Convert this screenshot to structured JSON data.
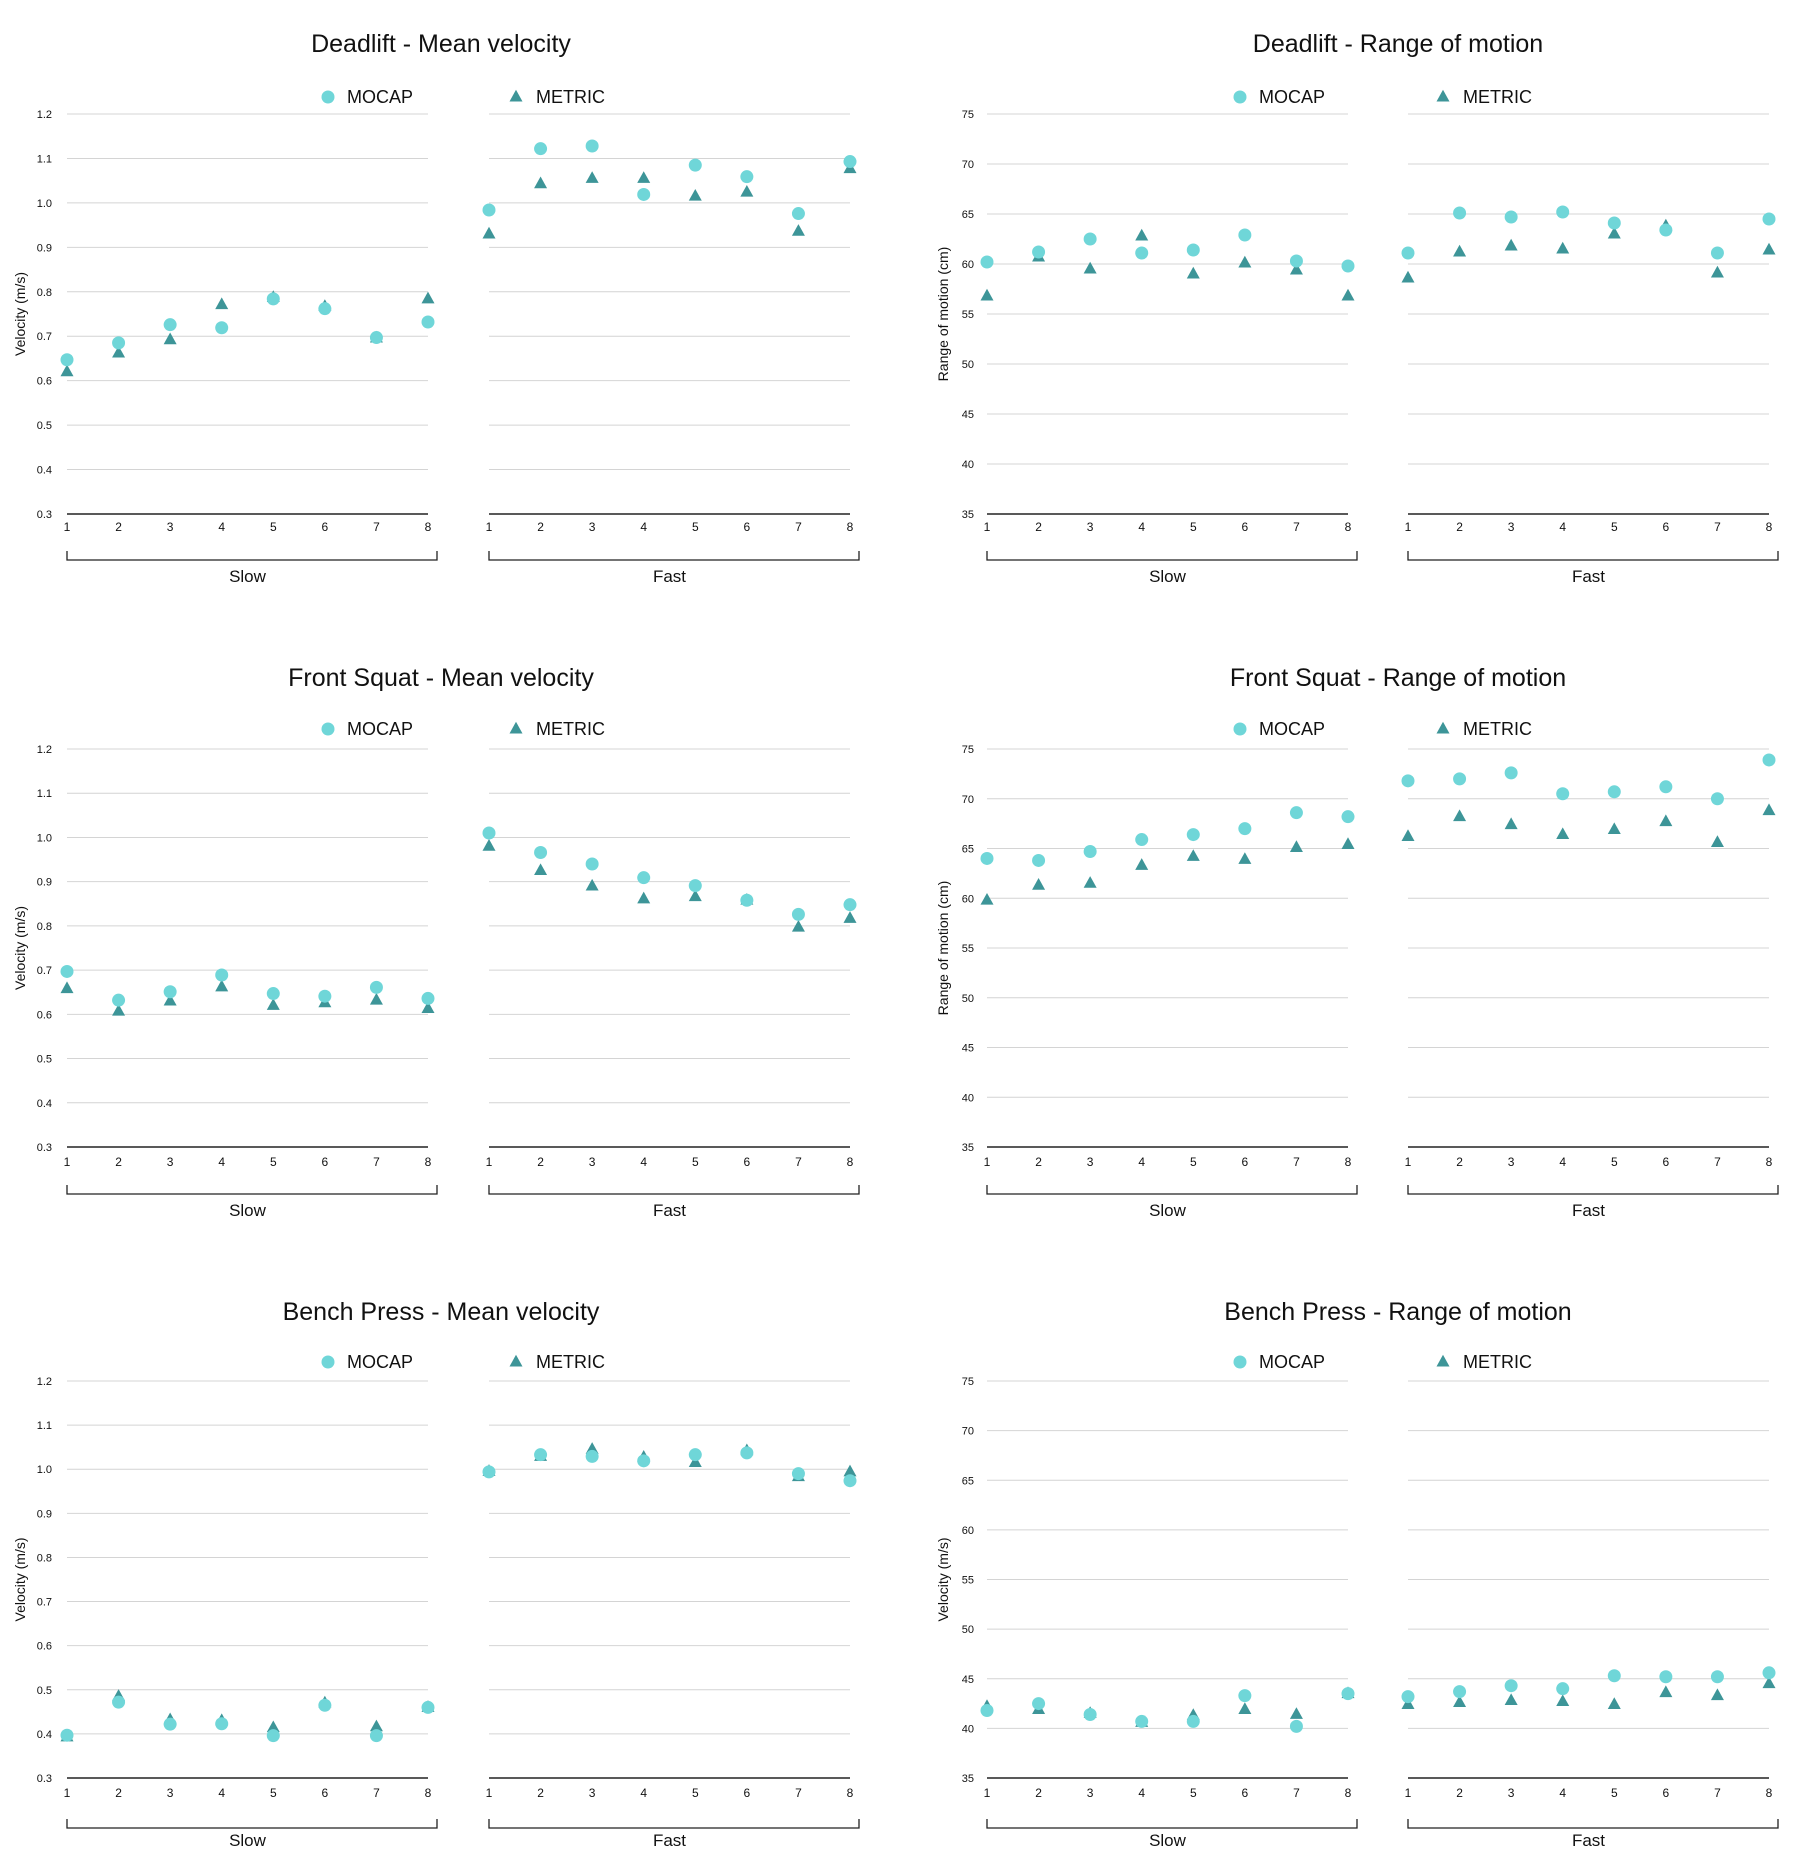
{
  "colors": {
    "mocap": "#6fd6d8",
    "metric": "#3d9598",
    "grid": "#d4d4d4",
    "axis": "#222222",
    "text": "#111111"
  },
  "legend": {
    "mocap": "MOCAP",
    "metric": "METRIC"
  },
  "chart_data": [
    {
      "type": "scatter",
      "title": "Deadlift - Mean velocity",
      "ylabel": "Velocity (m/s)",
      "ylim": [
        0.3,
        1.2
      ],
      "yticks": [
        "0.3",
        "0.4",
        "0.5",
        "0.6",
        "0.7",
        "0.8",
        "0.9",
        "1.0",
        "1.1",
        "1.2"
      ],
      "categories": [
        "1",
        "2",
        "3",
        "4",
        "5",
        "6",
        "7",
        "8"
      ],
      "groups": [
        {
          "name": "Slow",
          "series": [
            {
              "name": "MOCAP",
              "values": [
                0.647,
                0.685,
                0.726,
                0.719,
                0.784,
                0.762,
                0.697,
                0.732
              ]
            },
            {
              "name": "METRIC",
              "values": [
                0.62,
                0.662,
                0.692,
                0.771,
                0.787,
                0.767,
                0.696,
                0.784
              ]
            }
          ]
        },
        {
          "name": "Fast",
          "series": [
            {
              "name": "MOCAP",
              "values": [
                0.984,
                1.122,
                1.128,
                1.019,
                1.085,
                1.059,
                0.976,
                1.093
              ]
            },
            {
              "name": "METRIC",
              "values": [
                0.93,
                1.043,
                1.055,
                1.055,
                1.015,
                1.024,
                0.936,
                1.077
              ]
            }
          ]
        }
      ]
    },
    {
      "type": "scatter",
      "title": "Deadlift - Range of motion",
      "ylabel": "Range of motion (cm)",
      "ylim": [
        35,
        75
      ],
      "yticks": [
        "35",
        "40",
        "45",
        "50",
        "55",
        "60",
        "65",
        "70",
        "75"
      ],
      "categories": [
        "1",
        "2",
        "3",
        "4",
        "5",
        "6",
        "7",
        "8"
      ],
      "groups": [
        {
          "name": "Slow",
          "series": [
            {
              "name": "MOCAP",
              "values": [
                60.2,
                61.2,
                62.5,
                61.1,
                61.4,
                62.9,
                60.3,
                59.8
              ]
            },
            {
              "name": "METRIC",
              "values": [
                56.8,
                60.7,
                59.5,
                62.8,
                59.0,
                60.1,
                59.4,
                56.8
              ]
            }
          ]
        },
        {
          "name": "Fast",
          "series": [
            {
              "name": "MOCAP",
              "values": [
                61.1,
                65.1,
                64.7,
                65.2,
                64.1,
                63.4,
                61.1,
                64.5
              ]
            },
            {
              "name": "METRIC",
              "values": [
                58.6,
                61.2,
                61.8,
                61.5,
                63.0,
                63.8,
                59.1,
                61.4
              ]
            }
          ]
        }
      ]
    },
    {
      "type": "scatter",
      "title": "Front Squat - Mean velocity",
      "ylabel": "Velocity (m/s)",
      "ylim": [
        0.3,
        1.2
      ],
      "yticks": [
        "0.3",
        "0.4",
        "0.5",
        "0.6",
        "0.7",
        "0.8",
        "0.9",
        "1.0",
        "1.1",
        "1.2"
      ],
      "categories": [
        "1",
        "2",
        "3",
        "4",
        "5",
        "6",
        "7",
        "8"
      ],
      "groups": [
        {
          "name": "Slow",
          "series": [
            {
              "name": "MOCAP",
              "values": [
                0.697,
                0.632,
                0.651,
                0.689,
                0.647,
                0.641,
                0.661,
                0.636
              ]
            },
            {
              "name": "METRIC",
              "values": [
                0.658,
                0.607,
                0.63,
                0.662,
                0.62,
                0.626,
                0.632,
                0.613
              ]
            }
          ]
        },
        {
          "name": "Fast",
          "series": [
            {
              "name": "MOCAP",
              "values": [
                1.01,
                0.966,
                0.94,
                0.909,
                0.891,
                0.858,
                0.826,
                0.848
              ]
            },
            {
              "name": "METRIC",
              "values": [
                0.98,
                0.925,
                0.89,
                0.861,
                0.866,
                0.858,
                0.797,
                0.817
              ]
            }
          ]
        }
      ]
    },
    {
      "type": "scatter",
      "title": "Front Squat - Range of motion",
      "ylabel": "Range of motion (cm)",
      "ylim": [
        35,
        75
      ],
      "yticks": [
        "35",
        "40",
        "45",
        "50",
        "55",
        "60",
        "65",
        "70",
        "75"
      ],
      "categories": [
        "1",
        "2",
        "3",
        "4",
        "5",
        "6",
        "7",
        "8"
      ],
      "groups": [
        {
          "name": "Slow",
          "series": [
            {
              "name": "MOCAP",
              "values": [
                64.0,
                63.8,
                64.7,
                65.9,
                66.4,
                67.0,
                68.6,
                68.2
              ]
            },
            {
              "name": "METRIC",
              "values": [
                59.8,
                61.3,
                61.5,
                63.3,
                64.2,
                63.9,
                65.1,
                65.4
              ]
            }
          ]
        },
        {
          "name": "Fast",
          "series": [
            {
              "name": "MOCAP",
              "values": [
                71.8,
                72.0,
                72.6,
                70.5,
                70.7,
                71.2,
                70.0,
                73.9
              ]
            },
            {
              "name": "METRIC",
              "values": [
                66.2,
                68.2,
                67.4,
                66.4,
                66.9,
                67.7,
                65.6,
                68.8
              ]
            }
          ]
        }
      ]
    },
    {
      "type": "scatter",
      "title": "Bench Press - Mean velocity",
      "ylabel": "Velocity (m/s)",
      "ylim": [
        0.3,
        1.2
      ],
      "yticks": [
        "0.3",
        "0.4",
        "0.5",
        "0.6",
        "0.7",
        "0.8",
        "0.9",
        "1.0",
        "1.1",
        "1.2"
      ],
      "categories": [
        "1",
        "2",
        "3",
        "4",
        "5",
        "6",
        "7",
        "8"
      ],
      "groups": [
        {
          "name": "Slow",
          "series": [
            {
              "name": "MOCAP",
              "values": [
                0.397,
                0.472,
                0.422,
                0.423,
                0.396,
                0.465,
                0.396,
                0.46
              ]
            },
            {
              "name": "METRIC",
              "values": [
                0.393,
                0.485,
                0.432,
                0.43,
                0.414,
                0.47,
                0.416,
                0.46
              ]
            }
          ]
        },
        {
          "name": "Fast",
          "series": [
            {
              "name": "MOCAP",
              "values": [
                0.994,
                1.033,
                1.029,
                1.019,
                1.033,
                1.037,
                0.99,
                0.974
              ]
            },
            {
              "name": "METRIC",
              "values": [
                0.995,
                1.029,
                1.045,
                1.027,
                1.015,
                1.042,
                0.983,
                0.994
              ]
            }
          ]
        }
      ]
    },
    {
      "type": "scatter",
      "title": "Bench Press - Range of motion",
      "ylabel": "Velocity (m/s)",
      "ylim": [
        35,
        75
      ],
      "yticks": [
        "35",
        "40",
        "45",
        "50",
        "55",
        "60",
        "65",
        "70",
        "75"
      ],
      "categories": [
        "1",
        "2",
        "3",
        "4",
        "5",
        "6",
        "7",
        "8"
      ],
      "groups": [
        {
          "name": "Slow",
          "series": [
            {
              "name": "MOCAP",
              "values": [
                41.8,
                42.5,
                41.4,
                40.7,
                40.7,
                43.3,
                40.2,
                43.5
              ]
            },
            {
              "name": "METRIC",
              "values": [
                42.2,
                41.9,
                41.5,
                40.6,
                41.3,
                41.9,
                41.4,
                43.5
              ]
            }
          ]
        },
        {
          "name": "Fast",
          "series": [
            {
              "name": "MOCAP",
              "values": [
                43.2,
                43.7,
                44.3,
                44.0,
                45.3,
                45.2,
                45.2,
                45.6
              ]
            },
            {
              "name": "METRIC",
              "values": [
                42.4,
                42.6,
                42.8,
                42.7,
                42.4,
                43.6,
                43.3,
                44.5
              ]
            }
          ]
        }
      ]
    }
  ]
}
